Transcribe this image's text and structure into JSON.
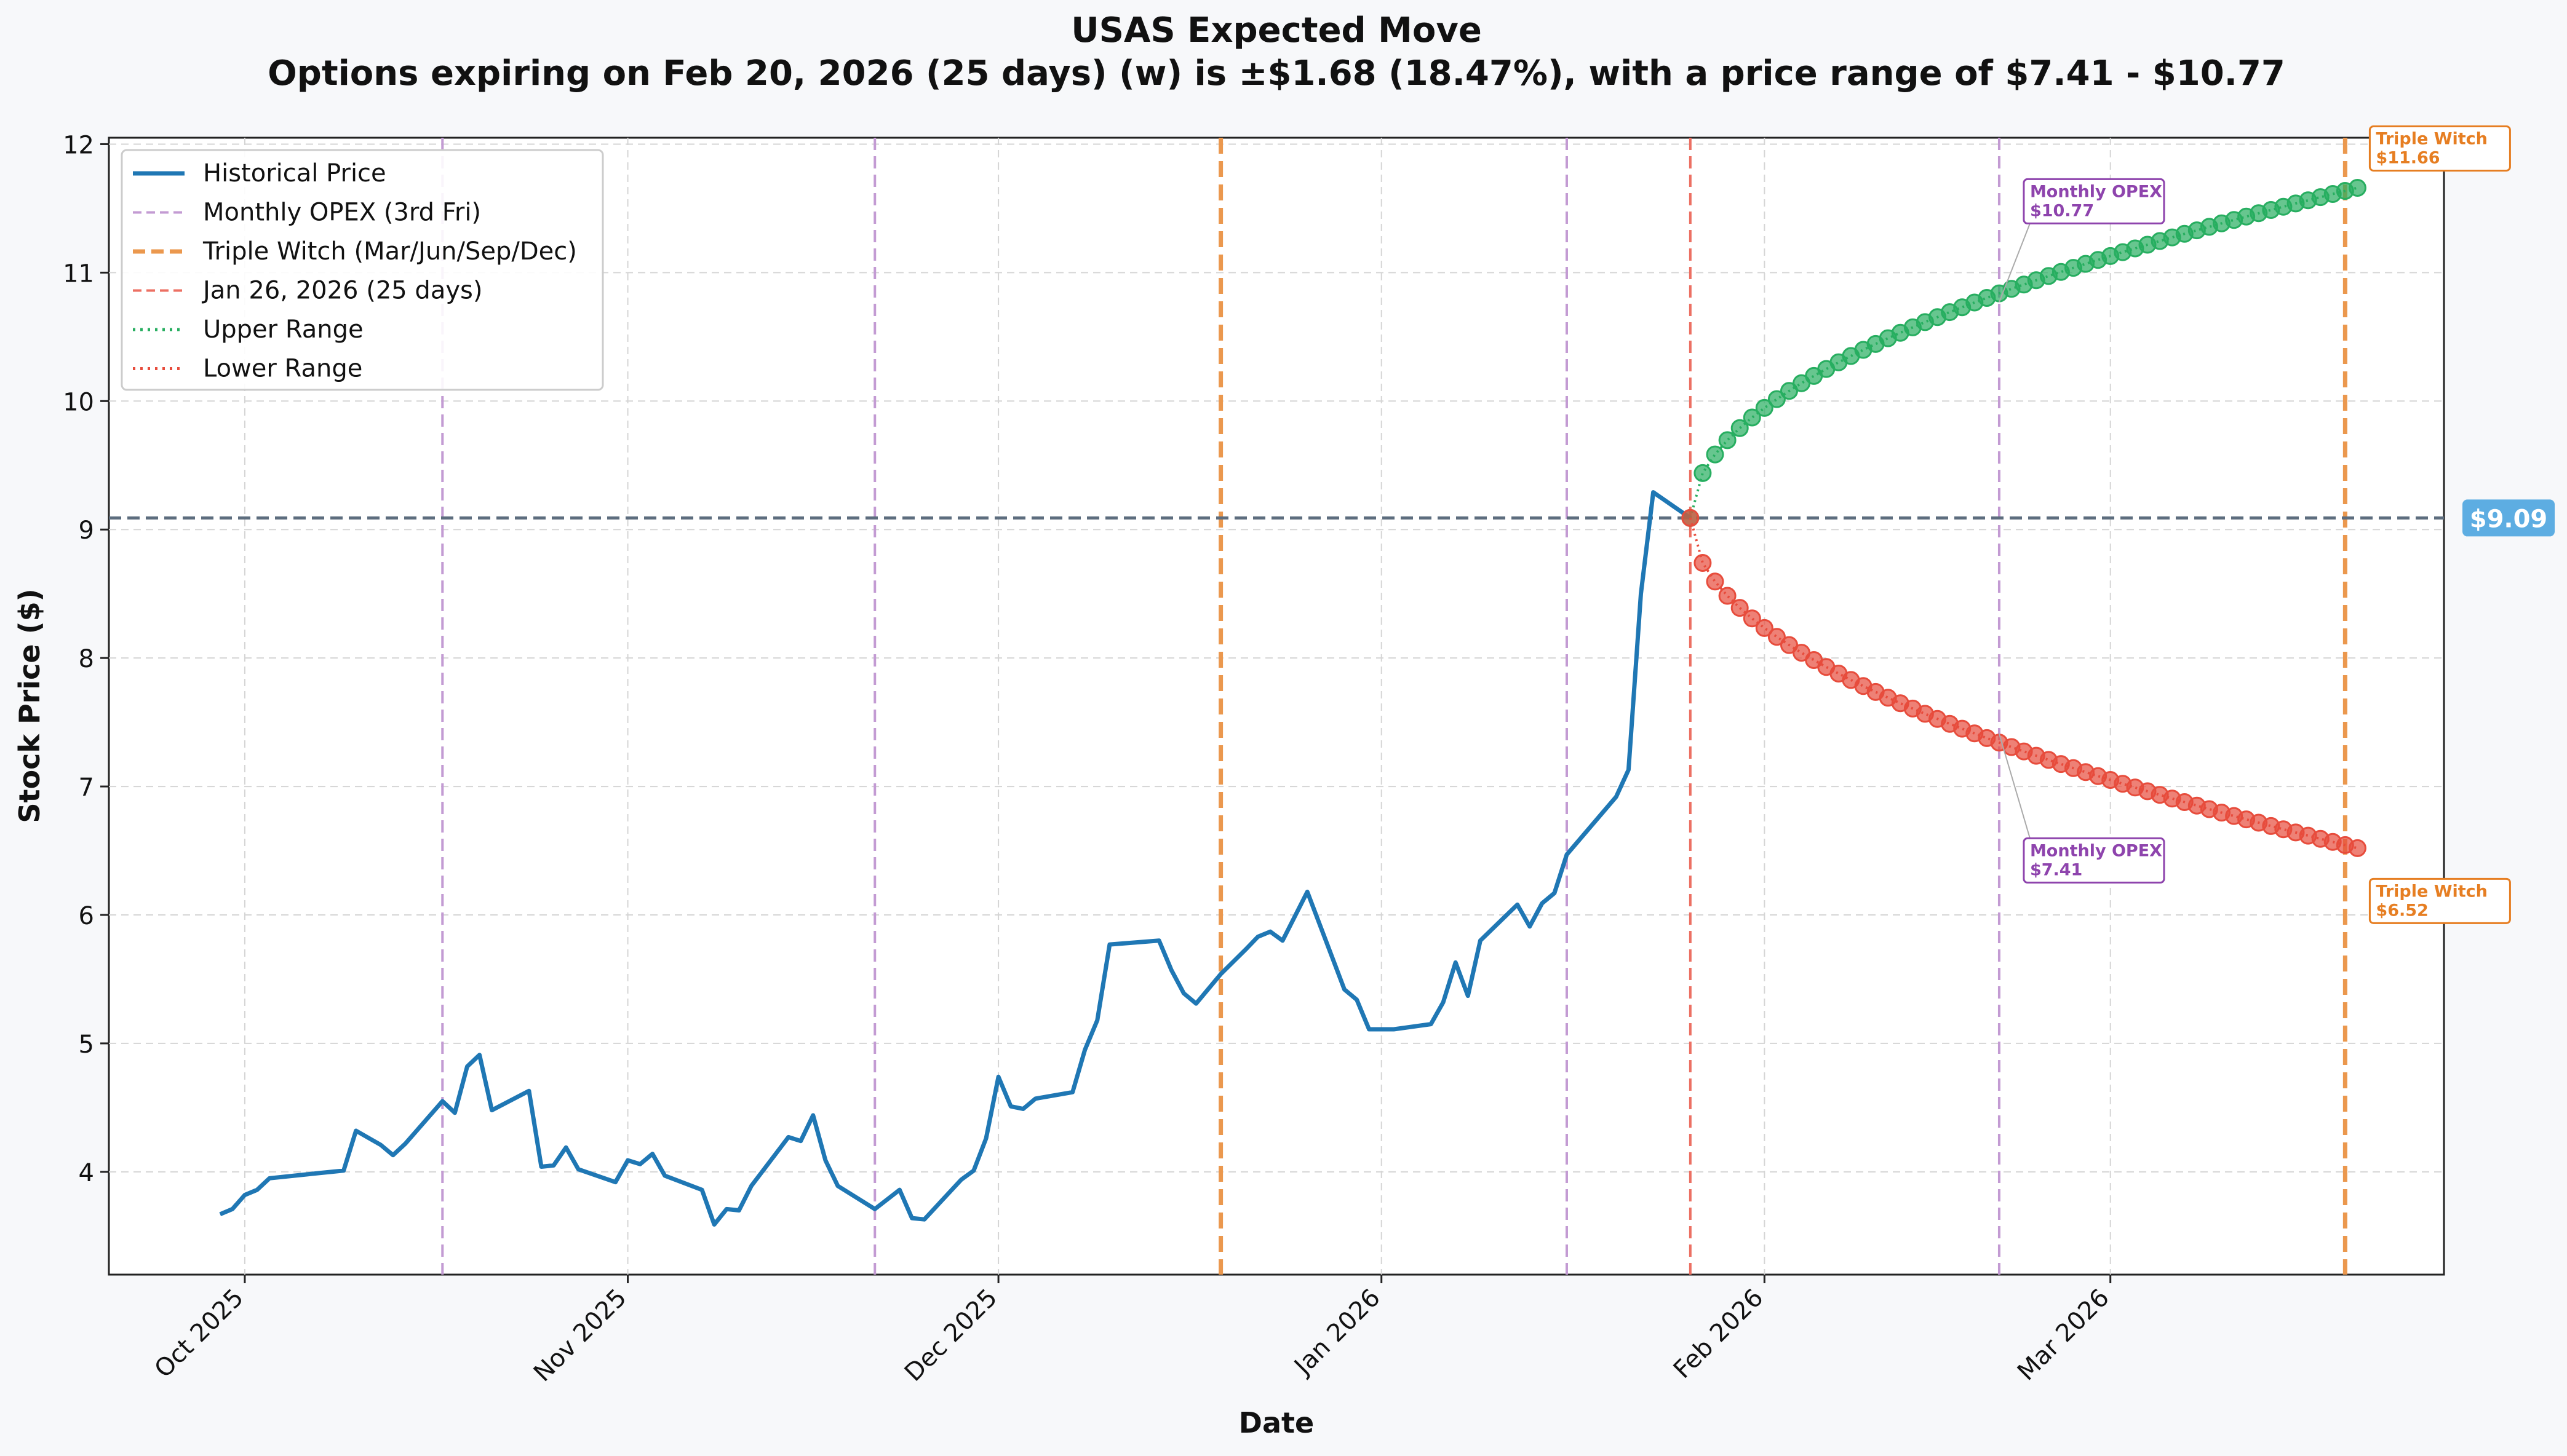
{
  "chart_data": {
    "type": "line",
    "title": "USAS Expected Move",
    "subtitle": "Options expiring on Feb 20, 2026 (25 days) (w) is ±$1.68 (18.47%), with a price range of $7.41 - $10.77",
    "xlabel": "Date",
    "ylabel": "Stock Price ($)",
    "ylim": [
      3.2,
      12.05
    ],
    "yticks": [
      4,
      5,
      6,
      7,
      8,
      9,
      10,
      11,
      12
    ],
    "xlim": [
      "2025-09-20",
      "2026-03-28"
    ],
    "xticks": [
      {
        "date": "2025-10-01",
        "label": "Oct 2025"
      },
      {
        "date": "2025-11-01",
        "label": "Nov 2025"
      },
      {
        "date": "2025-12-01",
        "label": "Dec 2025"
      },
      {
        "date": "2026-01-01",
        "label": "Jan 2026"
      },
      {
        "date": "2026-02-01",
        "label": "Feb 2026"
      },
      {
        "date": "2026-03-01",
        "label": "Mar 2026"
      }
    ],
    "grid": true,
    "legend_position": "top-left",
    "colors": {
      "historical": "#1f77b4",
      "monthly_opex": "#c39bd3",
      "triple_witch": "#eb984e",
      "current_date": "#ec7063",
      "upper": "#27ae60",
      "lower": "#e74c3c",
      "current_price": "#5d6d7e",
      "price_badge": "#5dade2",
      "opex_text": "#8e44ad",
      "triple_text": "#e67e22"
    },
    "legend": [
      {
        "label": "Historical Price",
        "style": "solid",
        "color": "#1f77b4"
      },
      {
        "label": "Monthly OPEX (3rd Fri)",
        "style": "dashed",
        "color": "#c39bd3"
      },
      {
        "label": "Triple Witch (Mar/Jun/Sep/Dec)",
        "style": "dashed-bold",
        "color": "#eb984e"
      },
      {
        "label": "Jan 26, 2026 (25 days)",
        "style": "dashed",
        "color": "#ec7063"
      },
      {
        "label": "Upper Range",
        "style": "dotted",
        "color": "#27ae60"
      },
      {
        "label": "Lower Range",
        "style": "dotted",
        "color": "#e74c3c"
      }
    ],
    "vlines": [
      {
        "date": "2025-10-17",
        "kind": "monthly_opex"
      },
      {
        "date": "2025-11-21",
        "kind": "monthly_opex"
      },
      {
        "date": "2025-12-19",
        "kind": "triple_witch"
      },
      {
        "date": "2026-01-16",
        "kind": "monthly_opex"
      },
      {
        "date": "2026-01-26",
        "kind": "current_date"
      },
      {
        "date": "2026-02-20",
        "kind": "monthly_opex"
      },
      {
        "date": "2026-03-20",
        "kind": "triple_witch"
      }
    ],
    "current_price": 9.09,
    "current_price_label": "$9.09",
    "historical": [
      [
        "2025-09-29",
        3.67
      ],
      [
        "2025-09-30",
        3.71
      ],
      [
        "2025-10-01",
        3.82
      ],
      [
        "2025-10-02",
        3.86
      ],
      [
        "2025-10-03",
        3.95
      ],
      [
        "2025-10-06",
        3.98
      ],
      [
        "2025-10-07",
        3.99
      ],
      [
        "2025-10-08",
        4.0
      ],
      [
        "2025-10-09",
        4.01
      ],
      [
        "2025-10-10",
        4.32
      ],
      [
        "2025-10-12",
        4.21
      ],
      [
        "2025-10-13",
        4.13
      ],
      [
        "2025-10-14",
        4.22
      ],
      [
        "2025-10-15",
        4.33
      ],
      [
        "2025-10-16",
        4.44
      ],
      [
        "2025-10-17",
        4.55
      ],
      [
        "2025-10-18",
        4.46
      ],
      [
        "2025-10-19",
        4.82
      ],
      [
        "2025-10-20",
        4.91
      ],
      [
        "2025-10-21",
        4.48
      ],
      [
        "2025-10-24",
        4.63
      ],
      [
        "2025-10-25",
        4.04
      ],
      [
        "2025-10-26",
        4.05
      ],
      [
        "2025-10-27",
        4.19
      ],
      [
        "2025-10-28",
        4.02
      ],
      [
        "2025-10-31",
        3.92
      ],
      [
        "2025-11-01",
        4.09
      ],
      [
        "2025-11-02",
        4.06
      ],
      [
        "2025-11-03",
        4.14
      ],
      [
        "2025-11-04",
        3.97
      ],
      [
        "2025-11-07",
        3.86
      ],
      [
        "2025-11-08",
        3.59
      ],
      [
        "2025-11-09",
        3.71
      ],
      [
        "2025-11-10",
        3.7
      ],
      [
        "2025-11-11",
        3.89
      ],
      [
        "2025-11-14",
        4.27
      ],
      [
        "2025-11-15",
        4.24
      ],
      [
        "2025-11-16",
        4.44
      ],
      [
        "2025-11-17",
        4.09
      ],
      [
        "2025-11-18",
        3.89
      ],
      [
        "2025-11-21",
        3.71
      ],
      [
        "2025-11-23",
        3.86
      ],
      [
        "2025-11-24",
        3.64
      ],
      [
        "2025-11-25",
        3.63
      ],
      [
        "2025-11-28",
        3.94
      ],
      [
        "2025-11-29",
        4.01
      ],
      [
        "2025-11-30",
        4.26
      ],
      [
        "2025-12-01",
        4.74
      ],
      [
        "2025-12-02",
        4.51
      ],
      [
        "2025-12-03",
        4.49
      ],
      [
        "2025-12-04",
        4.57
      ],
      [
        "2025-12-07",
        4.62
      ],
      [
        "2025-12-08",
        4.95
      ],
      [
        "2025-12-09",
        5.18
      ],
      [
        "2025-12-10",
        5.77
      ],
      [
        "2025-12-14",
        5.8
      ],
      [
        "2025-12-15",
        5.57
      ],
      [
        "2025-12-16",
        5.39
      ],
      [
        "2025-12-17",
        5.31
      ],
      [
        "2025-12-19",
        5.54
      ],
      [
        "2025-12-21",
        5.73
      ],
      [
        "2025-12-22",
        5.83
      ],
      [
        "2025-12-23",
        5.87
      ],
      [
        "2025-12-24",
        5.8
      ],
      [
        "2025-12-26",
        6.18
      ],
      [
        "2025-12-29",
        5.42
      ],
      [
        "2025-12-30",
        5.34
      ],
      [
        "2025-12-31",
        5.11
      ],
      [
        "2026-01-02",
        5.11
      ],
      [
        "2026-01-05",
        5.15
      ],
      [
        "2026-01-06",
        5.32
      ],
      [
        "2026-01-07",
        5.63
      ],
      [
        "2026-01-08",
        5.37
      ],
      [
        "2026-01-09",
        5.8
      ],
      [
        "2026-01-12",
        6.08
      ],
      [
        "2026-01-13",
        5.91
      ],
      [
        "2026-01-14",
        6.09
      ],
      [
        "2026-01-15",
        6.17
      ],
      [
        "2026-01-16",
        6.47
      ],
      [
        "2026-01-20",
        6.92
      ],
      [
        "2026-01-21",
        7.13
      ],
      [
        "2026-01-22",
        8.5
      ],
      [
        "2026-01-23",
        9.29
      ],
      [
        "2026-01-26",
        9.09
      ]
    ],
    "range_start": {
      "date": "2026-01-26",
      "value": 9.09
    },
    "range_end": {
      "date": "2026-03-21",
      "upper": 11.66,
      "lower": 6.52
    },
    "range_mid": {
      "date": "2026-02-20",
      "upper": 10.77,
      "lower": 7.41
    },
    "annotations": [
      {
        "title": "Monthly OPEX",
        "value": "$10.77",
        "kind": "opex",
        "date": "2026-02-20",
        "price": 10.77,
        "pos": "upper-mid"
      },
      {
        "title": "Monthly OPEX",
        "value": "$7.41",
        "kind": "opex",
        "date": "2026-02-20",
        "price": 7.41,
        "pos": "lower-mid"
      },
      {
        "title": "Triple Witch",
        "value": "$11.66",
        "kind": "triple",
        "date": "2026-03-21",
        "price": 11.66,
        "pos": "upper-end"
      },
      {
        "title": "Triple Witch",
        "value": "$6.52",
        "kind": "triple",
        "date": "2026-03-21",
        "price": 6.52,
        "pos": "lower-end"
      }
    ]
  }
}
